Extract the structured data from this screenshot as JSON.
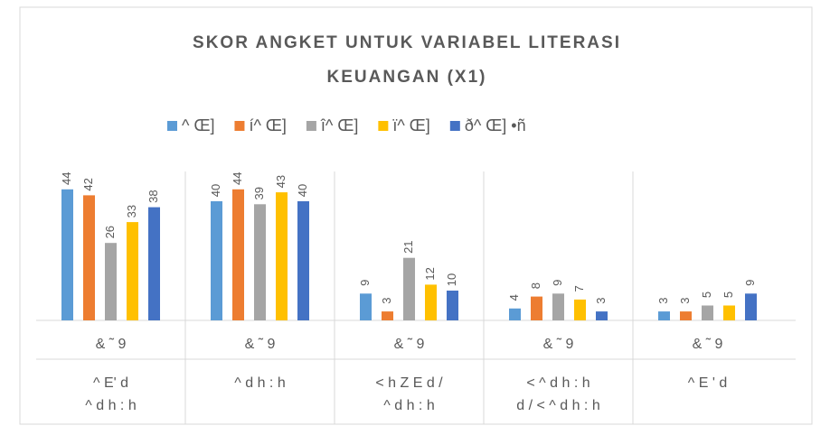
{
  "chart_data": {
    "type": "bar",
    "title": "SKOR ANGKET UNTUK VARIABEL LITERASI",
    "subtitle": "KEUANGAN (X1)",
    "categories": [
      "& ˜ 9",
      "& ˜ 9",
      "& ˜ 9",
      "& ˜ 9",
      "& ˜ 9"
    ],
    "group_labels": [
      [
        "^ E' d",
        "^ d h : h"
      ],
      [
        "^ d h : h"
      ],
      [
        "< h Z  E d /",
        "^ d h : h"
      ],
      [
        "< ^ d h : h",
        "d /  < ^ d h : h"
      ],
      [
        "^ E ' d"
      ]
    ],
    "series": [
      {
        "name": "^ Œ]",
        "color": "#5b9bd5",
        "values": [
          44,
          40,
          9,
          4,
          3
        ]
      },
      {
        "name": "í^ Œ]",
        "color": "#ed7d31",
        "values": [
          42,
          44,
          3,
          8,
          3
        ]
      },
      {
        "name": "î^ Œ]",
        "color": "#a5a5a5",
        "values": [
          26,
          39,
          21,
          9,
          5
        ]
      },
      {
        "name": "ï^ Œ]",
        "color": "#ffc000",
        "values": [
          33,
          43,
          12,
          7,
          5
        ]
      },
      {
        "name": "ð^ Œ] •ñ",
        "color": "#4472c4",
        "values": [
          38,
          40,
          10,
          3,
          9
        ]
      }
    ],
    "ylim": [
      0,
      50
    ],
    "legend": "top",
    "data_labels": true
  }
}
